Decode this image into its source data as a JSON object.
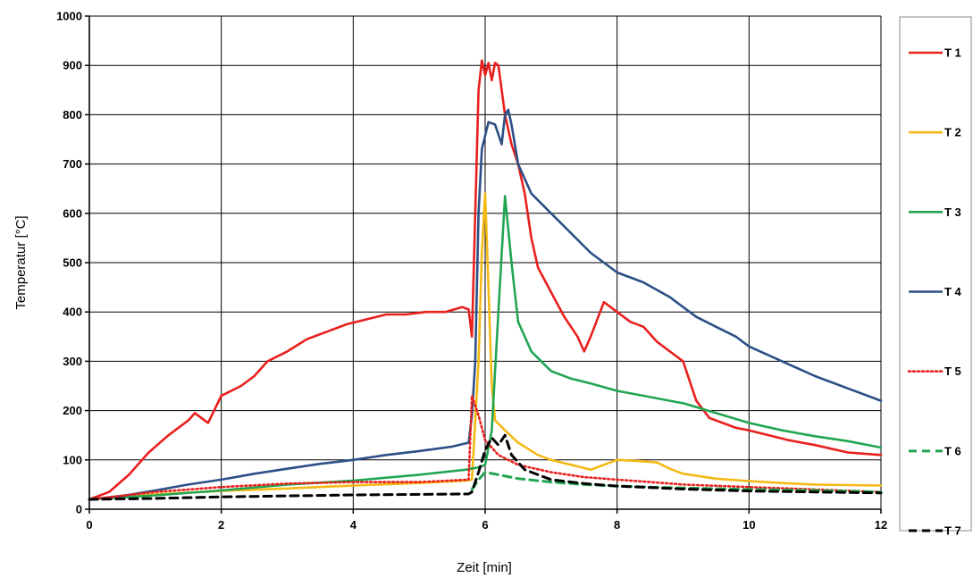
{
  "chart_data": {
    "type": "line",
    "title": "",
    "xlabel": "Zeit [min]",
    "ylabel": "Temperatur [°C]",
    "xlim": [
      0,
      12
    ],
    "ylim": [
      0,
      1000
    ],
    "x_ticks": [
      "0",
      "2",
      "4",
      "6",
      "8",
      "10",
      "12"
    ],
    "y_ticks": [
      "0",
      "100",
      "200",
      "300",
      "400",
      "500",
      "600",
      "700",
      "800",
      "900",
      "1000"
    ],
    "grid": true,
    "legend_position": "right",
    "series": [
      {
        "name": "T 1",
        "color": "#e8201e",
        "dash": "solid",
        "points": [
          [
            0,
            20
          ],
          [
            0.3,
            35
          ],
          [
            0.6,
            70
          ],
          [
            0.9,
            115
          ],
          [
            1.2,
            150
          ],
          [
            1.5,
            180
          ],
          [
            1.6,
            195
          ],
          [
            1.8,
            175
          ],
          [
            2.0,
            230
          ],
          [
            2.3,
            250
          ],
          [
            2.5,
            270
          ],
          [
            2.7,
            300
          ],
          [
            3.0,
            320
          ],
          [
            3.3,
            345
          ],
          [
            3.6,
            360
          ],
          [
            3.9,
            375
          ],
          [
            4.2,
            385
          ],
          [
            4.5,
            395
          ],
          [
            4.8,
            395
          ],
          [
            5.1,
            400
          ],
          [
            5.4,
            400
          ],
          [
            5.65,
            410
          ],
          [
            5.75,
            405
          ],
          [
            5.8,
            350
          ],
          [
            5.85,
            600
          ],
          [
            5.9,
            850
          ],
          [
            5.95,
            910
          ],
          [
            6.0,
            880
          ],
          [
            6.05,
            905
          ],
          [
            6.1,
            870
          ],
          [
            6.15,
            905
          ],
          [
            6.2,
            900
          ],
          [
            6.3,
            800
          ],
          [
            6.4,
            740
          ],
          [
            6.5,
            700
          ],
          [
            6.6,
            640
          ],
          [
            6.7,
            550
          ],
          [
            6.8,
            490
          ],
          [
            7.0,
            440
          ],
          [
            7.2,
            390
          ],
          [
            7.4,
            350
          ],
          [
            7.5,
            320
          ],
          [
            7.6,
            350
          ],
          [
            7.8,
            420
          ],
          [
            8.0,
            400
          ],
          [
            8.2,
            380
          ],
          [
            8.4,
            370
          ],
          [
            8.6,
            340
          ],
          [
            8.8,
            320
          ],
          [
            9.0,
            300
          ],
          [
            9.2,
            220
          ],
          [
            9.4,
            185
          ],
          [
            9.6,
            175
          ],
          [
            9.8,
            165
          ],
          [
            10.0,
            160
          ],
          [
            10.3,
            150
          ],
          [
            10.6,
            140
          ],
          [
            11.0,
            130
          ],
          [
            11.5,
            115
          ],
          [
            12.0,
            110
          ]
        ]
      },
      {
        "name": "T 2",
        "color": "#f5b915",
        "dash": "solid",
        "points": [
          [
            0,
            20
          ],
          [
            1,
            30
          ],
          [
            2,
            37
          ],
          [
            3,
            42
          ],
          [
            4,
            48
          ],
          [
            5,
            53
          ],
          [
            5.7,
            58
          ],
          [
            5.8,
            60
          ],
          [
            5.9,
            300
          ],
          [
            5.95,
            520
          ],
          [
            6.0,
            640
          ],
          [
            6.05,
            450
          ],
          [
            6.1,
            250
          ],
          [
            6.15,
            180
          ],
          [
            6.3,
            160
          ],
          [
            6.5,
            135
          ],
          [
            6.8,
            110
          ],
          [
            7.0,
            100
          ],
          [
            7.3,
            90
          ],
          [
            7.6,
            80
          ],
          [
            7.8,
            90
          ],
          [
            8.0,
            100
          ],
          [
            8.3,
            98
          ],
          [
            8.6,
            95
          ],
          [
            8.8,
            82
          ],
          [
            9.0,
            72
          ],
          [
            9.5,
            62
          ],
          [
            10.0,
            57
          ],
          [
            10.5,
            53
          ],
          [
            11.0,
            50
          ],
          [
            12.0,
            48
          ]
        ]
      },
      {
        "name": "T 3",
        "color": "#22a552",
        "dash": "solid",
        "points": [
          [
            0,
            20
          ],
          [
            1,
            28
          ],
          [
            2,
            38
          ],
          [
            3,
            50
          ],
          [
            4,
            58
          ],
          [
            5,
            70
          ],
          [
            5.7,
            80
          ],
          [
            5.9,
            85
          ],
          [
            6.0,
            90
          ],
          [
            6.1,
            160
          ],
          [
            6.2,
            400
          ],
          [
            6.3,
            635
          ],
          [
            6.4,
            500
          ],
          [
            6.5,
            380
          ],
          [
            6.7,
            320
          ],
          [
            7.0,
            280
          ],
          [
            7.3,
            265
          ],
          [
            7.6,
            255
          ],
          [
            8.0,
            240
          ],
          [
            8.4,
            230
          ],
          [
            8.8,
            220
          ],
          [
            9.0,
            215
          ],
          [
            9.5,
            195
          ],
          [
            10.0,
            175
          ],
          [
            10.5,
            160
          ],
          [
            11.0,
            148
          ],
          [
            11.5,
            138
          ],
          [
            12.0,
            125
          ]
        ]
      },
      {
        "name": "T 4",
        "color": "#2c4f86",
        "dash": "solid",
        "points": [
          [
            0,
            20
          ],
          [
            0.5,
            27
          ],
          [
            1,
            38
          ],
          [
            1.5,
            50
          ],
          [
            2,
            60
          ],
          [
            2.5,
            72
          ],
          [
            3,
            82
          ],
          [
            3.5,
            92
          ],
          [
            4,
            100
          ],
          [
            4.5,
            110
          ],
          [
            5,
            118
          ],
          [
            5.5,
            127
          ],
          [
            5.75,
            135
          ],
          [
            5.8,
            190
          ],
          [
            5.85,
            300
          ],
          [
            5.9,
            600
          ],
          [
            5.95,
            730
          ],
          [
            6.05,
            785
          ],
          [
            6.15,
            780
          ],
          [
            6.25,
            740
          ],
          [
            6.3,
            800
          ],
          [
            6.35,
            810
          ],
          [
            6.4,
            780
          ],
          [
            6.5,
            700
          ],
          [
            6.7,
            640
          ],
          [
            7.0,
            600
          ],
          [
            7.3,
            560
          ],
          [
            7.6,
            520
          ],
          [
            8.0,
            480
          ],
          [
            8.4,
            460
          ],
          [
            8.8,
            430
          ],
          [
            9.0,
            410
          ],
          [
            9.2,
            390
          ],
          [
            9.5,
            370
          ],
          [
            9.8,
            350
          ],
          [
            10.0,
            330
          ],
          [
            10.5,
            300
          ],
          [
            11.0,
            270
          ],
          [
            11.5,
            245
          ],
          [
            12.0,
            220
          ]
        ]
      },
      {
        "name": "T 5",
        "color": "#e8201e",
        "dash": "dotted",
        "points": [
          [
            0,
            20
          ],
          [
            1,
            35
          ],
          [
            2,
            45
          ],
          [
            3,
            52
          ],
          [
            4,
            55
          ],
          [
            5,
            55
          ],
          [
            5.75,
            60
          ],
          [
            5.8,
            230
          ],
          [
            5.9,
            190
          ],
          [
            6.0,
            140
          ],
          [
            6.2,
            110
          ],
          [
            6.5,
            90
          ],
          [
            7.0,
            75
          ],
          [
            7.5,
            65
          ],
          [
            8.0,
            60
          ],
          [
            8.5,
            55
          ],
          [
            9.0,
            50
          ],
          [
            10.0,
            45
          ],
          [
            11.0,
            40
          ],
          [
            12.0,
            35
          ]
        ]
      },
      {
        "name": "T 6",
        "color": "#22a552",
        "dash": "dashed",
        "points": [
          [
            5.8,
            40
          ],
          [
            5.9,
            60
          ],
          [
            6.0,
            75
          ],
          [
            6.2,
            70
          ],
          [
            6.5,
            62
          ],
          [
            7.0,
            55
          ],
          [
            7.5,
            50
          ],
          [
            8.0,
            47
          ],
          [
            8.5,
            45
          ],
          [
            9.0,
            43
          ],
          [
            10.0,
            40
          ],
          [
            11.0,
            38
          ],
          [
            12.0,
            35
          ]
        ]
      },
      {
        "name": "T 7",
        "color": "#000000",
        "dash": "dashed",
        "points": [
          [
            0,
            20
          ],
          [
            1,
            22
          ],
          [
            2,
            25
          ],
          [
            3,
            27
          ],
          [
            4,
            29
          ],
          [
            5,
            30
          ],
          [
            5.75,
            31
          ],
          [
            5.8,
            35
          ],
          [
            5.9,
            75
          ],
          [
            6.0,
            120
          ],
          [
            6.1,
            145
          ],
          [
            6.2,
            130
          ],
          [
            6.3,
            150
          ],
          [
            6.4,
            110
          ],
          [
            6.6,
            80
          ],
          [
            7.0,
            60
          ],
          [
            7.5,
            52
          ],
          [
            8.0,
            47
          ],
          [
            8.5,
            44
          ],
          [
            9.0,
            41
          ],
          [
            10.0,
            37
          ],
          [
            11.0,
            35
          ],
          [
            12.0,
            33
          ]
        ]
      }
    ]
  }
}
